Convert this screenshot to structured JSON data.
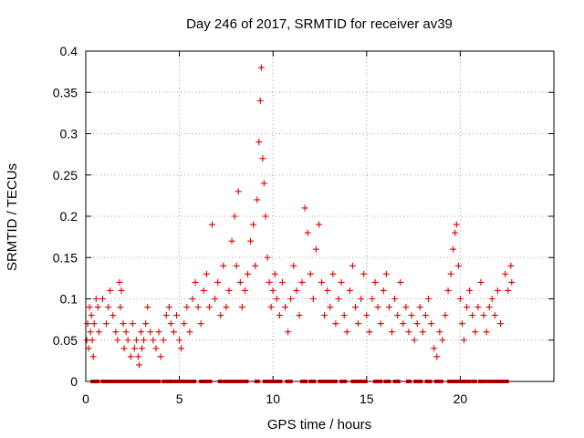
{
  "chart_data": {
    "type": "scatter",
    "title": "Day 246 of 2017, SRMTID for receiver av39",
    "xlabel": "GPS time / hours",
    "ylabel": "SRMTID / TECUs",
    "xlim": [
      0,
      25
    ],
    "ylim": [
      0,
      0.4
    ],
    "xticks": [
      0,
      5,
      10,
      15,
      20
    ],
    "xtick_labels": [
      "0",
      "5",
      "10",
      "15",
      "20"
    ],
    "yticks": [
      0,
      0.05,
      0.1,
      0.15,
      0.2,
      0.25,
      0.3,
      0.35,
      0.4
    ],
    "ytick_labels": [
      "0",
      "0.05",
      "0.1",
      "0.15",
      "0.2",
      "0.25",
      "0.3",
      "0.35",
      "0.4"
    ],
    "grid": true,
    "marker": "plus",
    "color": "#e00000",
    "series": [
      {
        "name": "SRMTID",
        "points": [
          [
            0.05,
            0.05
          ],
          [
            0.1,
            0.07
          ],
          [
            0.15,
            0.04
          ],
          [
            0.2,
            0.09
          ],
          [
            0.25,
            0.06
          ],
          [
            0.3,
            0.08
          ],
          [
            0.35,
            0.05
          ],
          [
            0.4,
            0.03
          ],
          [
            0.45,
            0.07
          ],
          [
            0.55,
            0.1
          ],
          [
            0.65,
            0.09
          ],
          [
            0.7,
            0.06
          ],
          [
            0.9,
            0.1
          ],
          [
            1.1,
            0.07
          ],
          [
            1.2,
            0.09
          ],
          [
            1.3,
            0.11
          ],
          [
            1.45,
            0.08
          ],
          [
            1.6,
            0.06
          ],
          [
            1.7,
            0.05
          ],
          [
            1.8,
            0.12
          ],
          [
            1.85,
            0.09
          ],
          [
            1.9,
            0.11
          ],
          [
            2.0,
            0.07
          ],
          [
            2.05,
            0.04
          ],
          [
            2.15,
            0.06
          ],
          [
            2.25,
            0.05
          ],
          [
            2.4,
            0.03
          ],
          [
            2.5,
            0.07
          ],
          [
            2.6,
            0.04
          ],
          [
            2.7,
            0.05
          ],
          [
            2.8,
            0.03
          ],
          [
            2.85,
            0.02
          ],
          [
            2.95,
            0.06
          ],
          [
            3.0,
            0.04
          ],
          [
            3.1,
            0.05
          ],
          [
            3.2,
            0.07
          ],
          [
            3.3,
            0.09
          ],
          [
            3.45,
            0.06
          ],
          [
            3.6,
            0.05
          ],
          [
            3.75,
            0.04
          ],
          [
            3.9,
            0.06
          ],
          [
            4.0,
            0.03
          ],
          [
            4.15,
            0.05
          ],
          [
            4.3,
            0.08
          ],
          [
            4.45,
            0.09
          ],
          [
            4.55,
            0.07
          ],
          [
            4.7,
            0.06
          ],
          [
            4.85,
            0.08
          ],
          [
            5.0,
            0.05
          ],
          [
            5.1,
            0.04
          ],
          [
            5.25,
            0.07
          ],
          [
            5.4,
            0.09
          ],
          [
            5.55,
            0.06
          ],
          [
            5.7,
            0.1
          ],
          [
            5.85,
            0.12
          ],
          [
            6.0,
            0.09
          ],
          [
            6.15,
            0.07
          ],
          [
            6.3,
            0.11
          ],
          [
            6.45,
            0.13
          ],
          [
            6.6,
            0.09
          ],
          [
            6.75,
            0.19
          ],
          [
            6.9,
            0.1
          ],
          [
            7.05,
            0.12
          ],
          [
            7.2,
            0.08
          ],
          [
            7.35,
            0.14
          ],
          [
            7.5,
            0.09
          ],
          [
            7.65,
            0.11
          ],
          [
            7.8,
            0.17
          ],
          [
            7.95,
            0.2
          ],
          [
            8.05,
            0.14
          ],
          [
            8.15,
            0.23
          ],
          [
            8.25,
            0.12
          ],
          [
            8.35,
            0.09
          ],
          [
            8.5,
            0.11
          ],
          [
            8.65,
            0.13
          ],
          [
            8.8,
            0.17
          ],
          [
            8.95,
            0.19
          ],
          [
            9.05,
            0.14
          ],
          [
            9.15,
            0.22
          ],
          [
            9.25,
            0.29
          ],
          [
            9.32,
            0.34
          ],
          [
            9.38,
            0.38
          ],
          [
            9.45,
            0.27
          ],
          [
            9.52,
            0.24
          ],
          [
            9.6,
            0.2
          ],
          [
            9.7,
            0.15
          ],
          [
            9.8,
            0.12
          ],
          [
            9.9,
            0.09
          ],
          [
            10.0,
            0.11
          ],
          [
            10.1,
            0.13
          ],
          [
            10.2,
            0.1
          ],
          [
            10.35,
            0.08
          ],
          [
            10.5,
            0.12
          ],
          [
            10.65,
            0.09
          ],
          [
            10.8,
            0.06
          ],
          [
            10.95,
            0.1
          ],
          [
            11.1,
            0.14
          ],
          [
            11.25,
            0.11
          ],
          [
            11.4,
            0.08
          ],
          [
            11.55,
            0.12
          ],
          [
            11.7,
            0.21
          ],
          [
            11.85,
            0.18
          ],
          [
            12.0,
            0.13
          ],
          [
            12.15,
            0.1
          ],
          [
            12.3,
            0.16
          ],
          [
            12.45,
            0.19
          ],
          [
            12.6,
            0.12
          ],
          [
            12.75,
            0.08
          ],
          [
            12.9,
            0.11
          ],
          [
            13.05,
            0.09
          ],
          [
            13.2,
            0.13
          ],
          [
            13.35,
            0.07
          ],
          [
            13.5,
            0.1
          ],
          [
            13.65,
            0.12
          ],
          [
            13.8,
            0.08
          ],
          [
            13.95,
            0.06
          ],
          [
            14.1,
            0.11
          ],
          [
            14.25,
            0.14
          ],
          [
            14.4,
            0.09
          ],
          [
            14.55,
            0.07
          ],
          [
            14.7,
            0.1
          ],
          [
            14.85,
            0.13
          ],
          [
            15.0,
            0.08
          ],
          [
            15.15,
            0.06
          ],
          [
            15.3,
            0.1
          ],
          [
            15.45,
            0.12
          ],
          [
            15.6,
            0.09
          ],
          [
            15.75,
            0.07
          ],
          [
            15.9,
            0.11
          ],
          [
            16.05,
            0.13
          ],
          [
            16.2,
            0.09
          ],
          [
            16.35,
            0.06
          ],
          [
            16.5,
            0.1
          ],
          [
            16.65,
            0.08
          ],
          [
            16.8,
            0.12
          ],
          [
            16.95,
            0.07
          ],
          [
            17.1,
            0.09
          ],
          [
            17.25,
            0.06
          ],
          [
            17.4,
            0.08
          ],
          [
            17.55,
            0.05
          ],
          [
            17.7,
            0.07
          ],
          [
            17.85,
            0.09
          ],
          [
            18.0,
            0.06
          ],
          [
            18.15,
            0.08
          ],
          [
            18.3,
            0.1
          ],
          [
            18.45,
            0.07
          ],
          [
            18.6,
            0.04
          ],
          [
            18.75,
            0.03
          ],
          [
            18.9,
            0.06
          ],
          [
            19.05,
            0.05
          ],
          [
            19.2,
            0.08
          ],
          [
            19.35,
            0.11
          ],
          [
            19.5,
            0.13
          ],
          [
            19.62,
            0.16
          ],
          [
            19.72,
            0.18
          ],
          [
            19.8,
            0.19
          ],
          [
            19.9,
            0.14
          ],
          [
            20.0,
            0.1
          ],
          [
            20.1,
            0.07
          ],
          [
            20.2,
            0.05
          ],
          [
            20.35,
            0.09
          ],
          [
            20.5,
            0.11
          ],
          [
            20.65,
            0.08
          ],
          [
            20.8,
            0.06
          ],
          [
            20.95,
            0.09
          ],
          [
            21.1,
            0.12
          ],
          [
            21.25,
            0.08
          ],
          [
            21.4,
            0.06
          ],
          [
            21.55,
            0.09
          ],
          [
            21.7,
            0.1
          ],
          [
            21.85,
            0.08
          ],
          [
            22.0,
            0.11
          ],
          [
            22.15,
            0.07
          ],
          [
            22.4,
            0.13
          ],
          [
            22.55,
            0.11
          ],
          [
            22.7,
            0.14
          ],
          [
            22.75,
            0.12
          ]
        ]
      }
    ],
    "zero_points": [
      0.4,
      0.6,
      0.95,
      1.05,
      1.15,
      1.25,
      1.35,
      1.45,
      1.7,
      1.95,
      2.05,
      2.2,
      2.45,
      2.55,
      2.65,
      2.75,
      2.85,
      3.05,
      3.15,
      3.3,
      3.55,
      3.65,
      3.75,
      3.85,
      4.2,
      4.35,
      4.45,
      4.55,
      4.85,
      4.95,
      5.2,
      5.3,
      5.55,
      5.65,
      5.75,
      6.2,
      6.3,
      6.5,
      6.6,
      7.2,
      7.5,
      7.6,
      7.7,
      7.95,
      8.05,
      8.15,
      8.25,
      8.55,
      9.15,
      9.6,
      9.7,
      9.95,
      10.1,
      10.2,
      10.35,
      10.8,
      10.9,
      11.6,
      11.7,
      12.05,
      12.15,
      12.55,
      12.8,
      12.95,
      13.2,
      13.3,
      13.7,
      13.8,
      14.3,
      14.55,
      14.75,
      14.9,
      15.5,
      15.6,
      15.7,
      16.05,
      16.15,
      16.55,
      16.65,
      17.25,
      17.65,
      17.75,
      17.85,
      18.25,
      18.35,
      18.75,
      18.85,
      18.95,
      19.45,
      19.55,
      19.65,
      19.75,
      19.85,
      20.1,
      20.35,
      20.45,
      20.75,
      21.1,
      21.2,
      21.5,
      21.6,
      21.85,
      22.05,
      22.15,
      22.35,
      22.45
    ]
  }
}
